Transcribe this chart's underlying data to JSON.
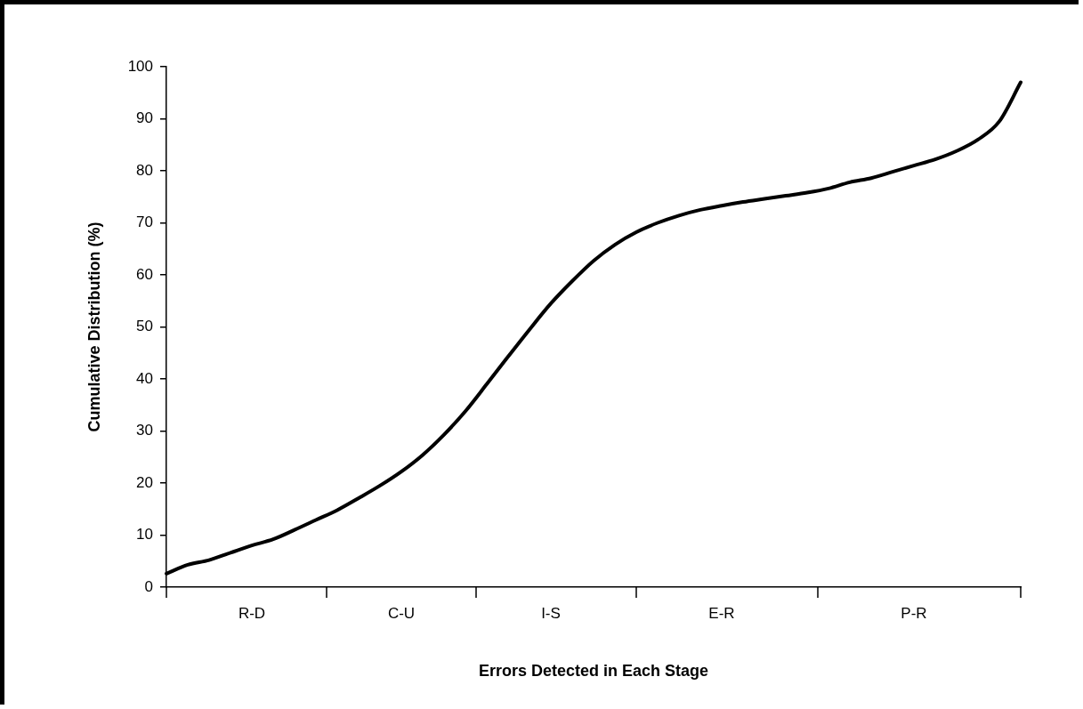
{
  "chart_data": {
    "type": "line",
    "xlabel": "Errors Detected in Each Stage",
    "ylabel": "Cumulative Distribution (%)",
    "categories": [
      null,
      null,
      null,
      null,
      "R-D",
      null,
      null,
      null,
      null,
      null,
      null,
      "C-U",
      null,
      null,
      null,
      null,
      null,
      null,
      "I-S",
      null,
      null,
      null,
      null,
      null,
      null,
      null,
      "E-R",
      null,
      null,
      null,
      null,
      null,
      null,
      null,
      null,
      "P-R",
      null,
      null,
      null,
      null,
      null
    ],
    "series": [
      {
        "color": "#000000",
        "values": [
          2.6,
          4.3,
          5.2,
          6.6,
          8,
          9.2,
          11,
          12.9,
          14.8,
          17.1,
          19.5,
          22.2,
          25.4,
          29.3,
          33.8,
          39,
          44.3,
          49.5,
          54.5,
          58.8,
          62.7,
          65.8,
          68.2,
          70,
          71.4,
          72.5,
          73.3,
          74,
          74.6,
          75.2,
          75.8,
          76.6,
          77.8,
          78.6,
          79.8,
          81,
          82.2,
          83.8,
          86,
          89.5,
          97
        ]
      }
    ],
    "ylim": [
      0,
      100
    ],
    "yticks": [
      0,
      10,
      20,
      30,
      40,
      50,
      60,
      70,
      80,
      90,
      100
    ],
    "grid": false,
    "legend": false,
    "marker": "none",
    "line_style": "solid"
  }
}
